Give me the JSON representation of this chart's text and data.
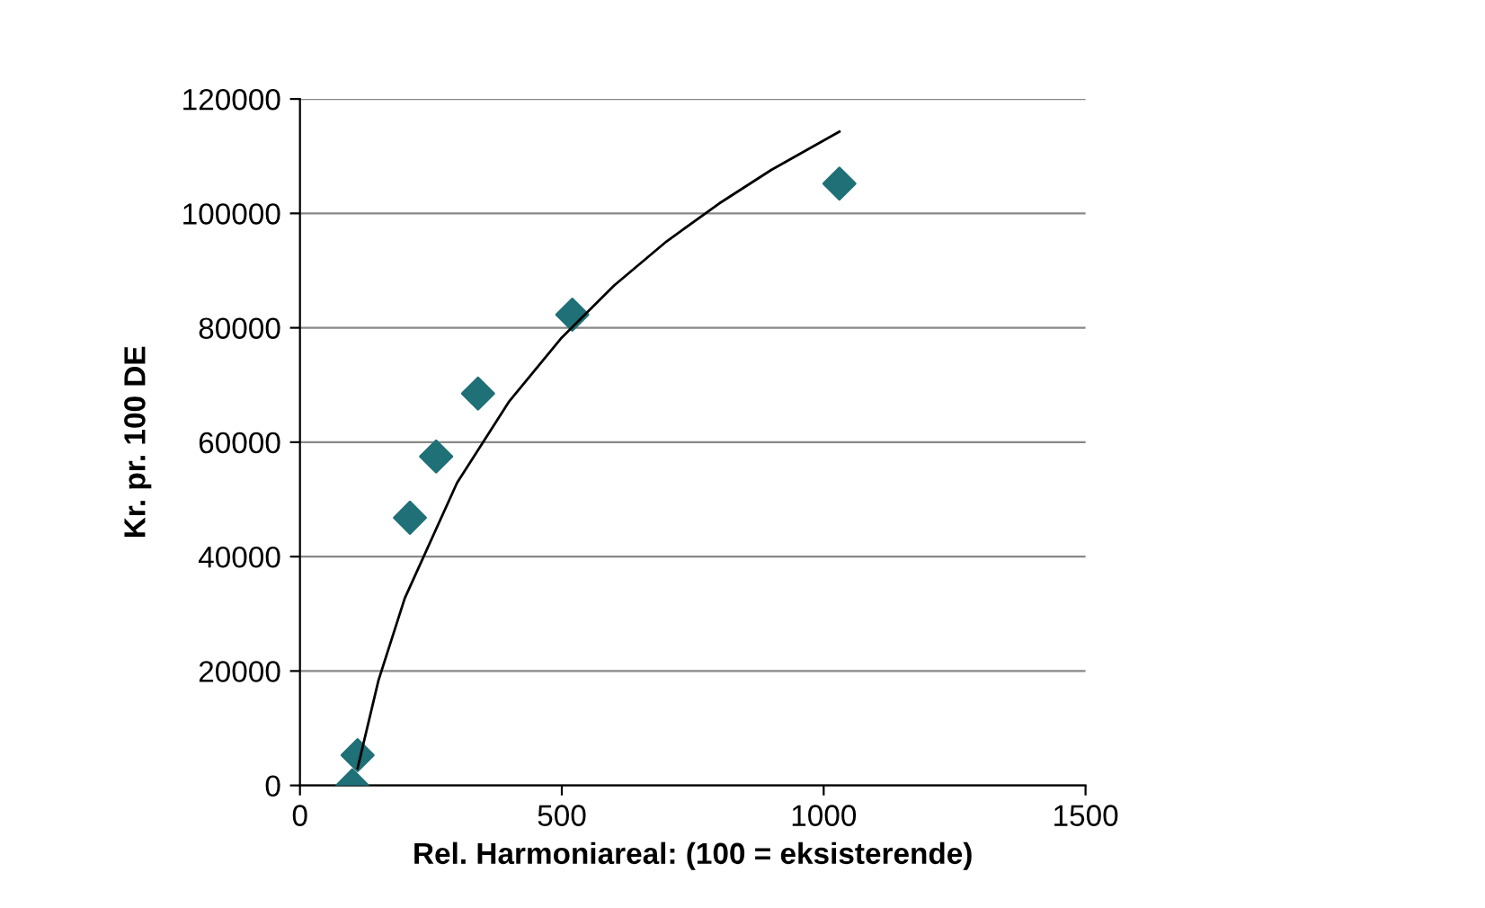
{
  "chart_data": {
    "type": "scatter",
    "xlabel": "Rel. Harmoniareal: (100 = eksisterende)",
    "ylabel": "Kr. pr. 100 DE",
    "xlim": [
      0,
      1500
    ],
    "xticks": [
      0,
      500,
      1000,
      1500
    ],
    "ylim": [
      0,
      120000
    ],
    "yticks": [
      0,
      20000,
      40000,
      60000,
      80000,
      100000,
      120000
    ],
    "grid": "y",
    "marker": "diamond",
    "series": [
      {
        "color": "#1f7077",
        "x": [
          100,
          110,
          210,
          260,
          340,
          520,
          1030
        ],
        "values": [
          0,
          5300,
          46800,
          57500,
          68500,
          82300,
          105200
        ]
      },
      {
        "type": "line",
        "color": "#000000",
        "marker": "none",
        "x": [
          110,
          150,
          200,
          300,
          400,
          500,
          600,
          700,
          800,
          900,
          1030
        ],
        "values": [
          3000,
          18400,
          32700,
          52900,
          67200,
          78300,
          87400,
          95100,
          101700,
          107600,
          114300
        ]
      }
    ]
  }
}
